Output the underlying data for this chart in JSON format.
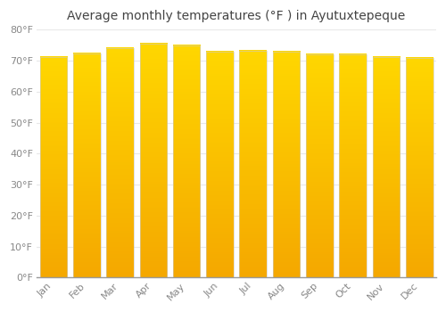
{
  "title": "Average monthly temperatures (°F ) in Ayutuxtepeque",
  "months": [
    "Jan",
    "Feb",
    "Mar",
    "Apr",
    "May",
    "Jun",
    "Jul",
    "Aug",
    "Sep",
    "Oct",
    "Nov",
    "Dec"
  ],
  "values": [
    71.2,
    72.3,
    74.1,
    75.6,
    75.0,
    73.0,
    73.2,
    73.0,
    72.0,
    72.0,
    71.1,
    70.9
  ],
  "bar_color_bottom": "#F5A800",
  "bar_color_top": "#FFD700",
  "bar_edge_color": "#DDDDDD",
  "background_color": "#FFFFFF",
  "grid_color": "#E8E8E8",
  "ylim": [
    0,
    80
  ],
  "yticks": [
    0,
    10,
    20,
    30,
    40,
    50,
    60,
    70,
    80
  ],
  "ytick_labels": [
    "0°F",
    "10°F",
    "20°F",
    "30°F",
    "40°F",
    "50°F",
    "60°F",
    "70°F",
    "80°F"
  ],
  "title_fontsize": 10,
  "tick_fontsize": 8,
  "figsize": [
    5.0,
    3.5
  ],
  "dpi": 100
}
